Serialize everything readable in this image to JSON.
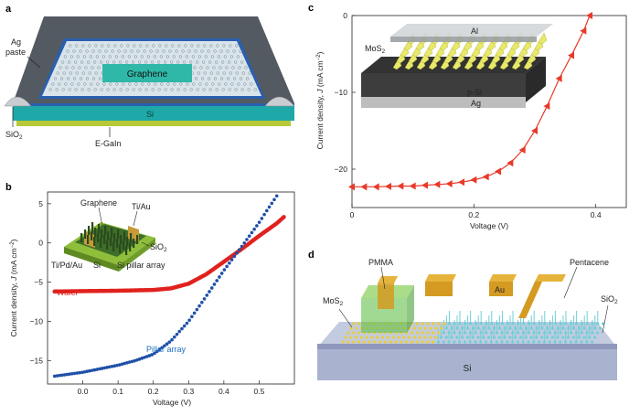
{
  "panel_a": {
    "label": "a",
    "ag_paste": [
      "Ag",
      "paste"
    ],
    "graphene": "Graphene",
    "si": "Si",
    "sio2": "SiO",
    "sio2_sub": "2",
    "egain": "E-GaIn",
    "colors": {
      "frame": "#5a5f66",
      "si": "#1fa8a8",
      "sio2": "#2a5fb0",
      "graphene": "#2fb8a8",
      "egain": "#b8c836"
    }
  },
  "panel_b": {
    "label": "b",
    "inset": {
      "graphene": "Graphene",
      "tiau": "Ti/Au",
      "sio2": "SiO",
      "sio2_sub": "2",
      "tipdau": "Ti/Pd/Au",
      "si": "Si",
      "pillar": "Si pillar array"
    },
    "wafer_label": "Wafer",
    "pillar_label": "Pillar array",
    "ylabel_main": "Current density, ",
    "ylabel_j": "J",
    "ylabel_unit": " (mA cm",
    "ylabel_sup": "−2",
    "ylabel_end": ")",
    "xlabel": "Voltage (V)"
  },
  "panel_c": {
    "label": "c",
    "inset": {
      "al": "Al",
      "mos2": "MoS",
      "mos2_sub": "2",
      "psi": "p-Si",
      "ag": "Ag"
    },
    "ylabel_main": "Current density, ",
    "ylabel_j": "J",
    "ylabel_unit": " (mA cm",
    "ylabel_sup": "−2",
    "ylabel_end": ")",
    "xlabel": "Voltage (V)"
  },
  "panel_d": {
    "label": "d",
    "pmma": "PMMA",
    "au": "Au",
    "pentacene": "Pentacene",
    "mos2": "MoS",
    "mos2_sub": "2",
    "sio2": "SiO",
    "sio2_sub": "2",
    "si": "Si"
  },
  "chart_data": [
    {
      "type": "scatter",
      "panel": "b",
      "xlabel": "Voltage (V)",
      "ylabel": "Current density, J (mA cm−2)",
      "xlim": [
        -0.1,
        0.6
      ],
      "ylim": [
        -18,
        6.5
      ],
      "xticks": [
        "0.0",
        "0.1",
        "0.2",
        "0.3",
        "0.4",
        "0.5"
      ],
      "yticks": [
        "5",
        "0",
        "−5",
        "−10",
        "−15"
      ],
      "colors": {
        "Wafer": "#e0221f",
        "Pillar array": "#1f4fa8"
      },
      "series": [
        {
          "name": "Wafer",
          "x": [
            -0.08,
            0.0,
            0.1,
            0.2,
            0.25,
            0.3,
            0.35,
            0.4,
            0.45,
            0.5,
            0.55,
            0.57
          ],
          "y": [
            -6.2,
            -6.15,
            -6.1,
            -6.0,
            -5.8,
            -5.2,
            -4.0,
            -2.4,
            -0.8,
            0.9,
            2.5,
            3.3
          ]
        },
        {
          "name": "Pillar array",
          "x": [
            -0.08,
            0.0,
            0.1,
            0.15,
            0.2,
            0.25,
            0.3,
            0.35,
            0.4,
            0.45,
            0.5,
            0.52,
            0.55
          ],
          "y": [
            -17.0,
            -16.5,
            -15.6,
            -15.0,
            -14.2,
            -12.5,
            -10.0,
            -6.8,
            -3.5,
            -0.5,
            2.6,
            4.0,
            6.0
          ]
        }
      ]
    },
    {
      "type": "line",
      "panel": "c",
      "xlabel": "Voltage (V)",
      "ylabel": "Current density, J (mA cm−2)",
      "xlim": [
        0,
        0.45
      ],
      "ylim": [
        -25,
        0
      ],
      "xticks": [
        "0",
        "0.2",
        "0.4"
      ],
      "yticks": [
        "0",
        "−10",
        "−20"
      ],
      "color": "#e8392a",
      "series": [
        {
          "name": "",
          "x": [
            0.0,
            0.02,
            0.04,
            0.06,
            0.08,
            0.1,
            0.12,
            0.14,
            0.16,
            0.18,
            0.2,
            0.22,
            0.24,
            0.26,
            0.28,
            0.3,
            0.32,
            0.34,
            0.36,
            0.38,
            0.39
          ],
          "y": [
            -22.3,
            -22.3,
            -22.3,
            -22.25,
            -22.2,
            -22.2,
            -22.1,
            -22.0,
            -21.9,
            -21.7,
            -21.4,
            -21.0,
            -20.3,
            -19.2,
            -17.5,
            -15.0,
            -11.8,
            -8.2,
            -5.2,
            -2.0,
            0.0
          ]
        }
      ]
    }
  ]
}
